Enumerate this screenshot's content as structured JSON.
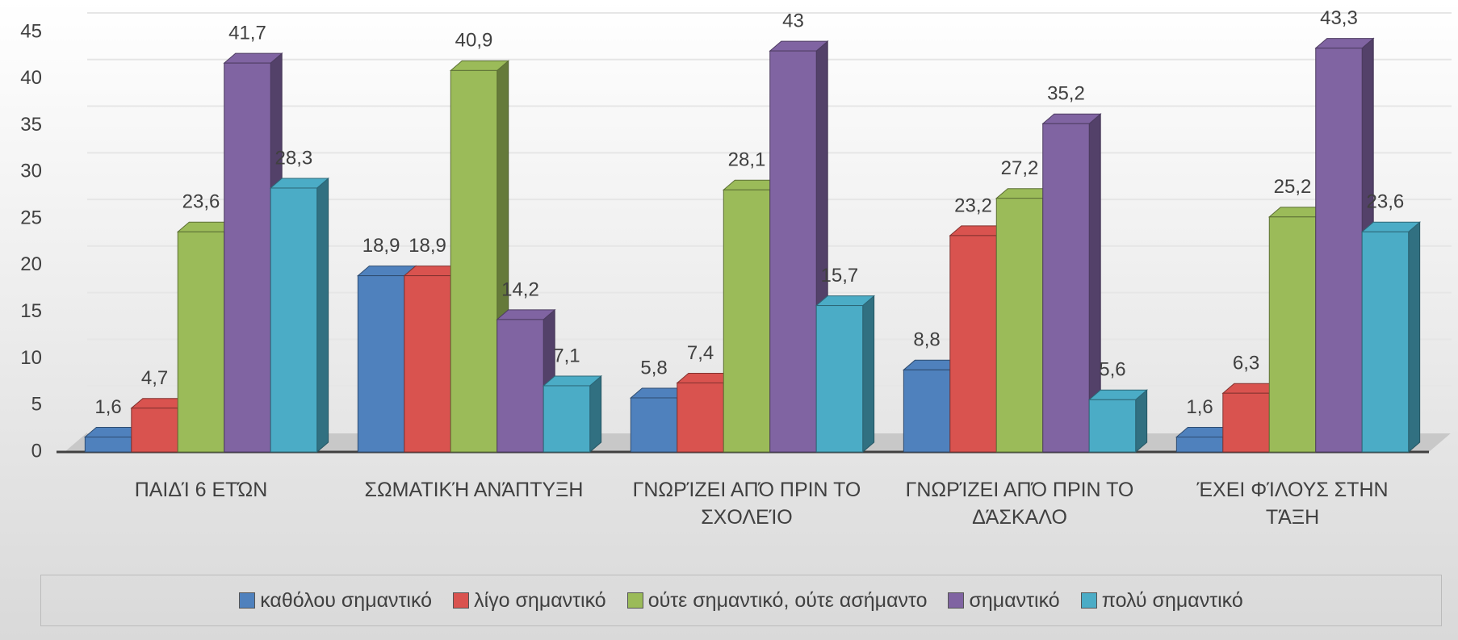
{
  "chart_data": {
    "type": "bar3d",
    "categories": [
      "ΠΑΙΔΊ 6 ΕΤΏΝ",
      "ΣΩΜΑΤΙΚΉ ΑΝΆΠΤΥΞΗ",
      "ΓΝΩΡΊΖΕΙ ΑΠΌ ΠΡΙΝ ΤΟ ΣΧΟΛΕΊΟ",
      "ΓΝΩΡΊΖΕΙ ΑΠΌ ΠΡΙΝ ΤΟ ΔΆΣΚΑΛΟ",
      "ΈΧΕΙ ΦΊΛΟΥΣ ΣΤΗΝ ΤΆΞΗ"
    ],
    "series": [
      {
        "name": "καθόλου σημαντικό",
        "color": "#4f81bd",
        "values": [
          1.6,
          18.9,
          5.8,
          8.8,
          1.6
        ],
        "value_labels": [
          "1,6",
          "18,9",
          "5,8",
          "8,8",
          "1,6"
        ]
      },
      {
        "name": "λίγο σημαντικό",
        "color": "#d9534f",
        "values": [
          4.7,
          18.9,
          7.4,
          23.2,
          6.3
        ],
        "value_labels": [
          "4,7",
          "18,9",
          "7,4",
          "23,2",
          "6,3"
        ]
      },
      {
        "name": "ούτε σημαντικό, ούτε ασήμαντο",
        "color": "#9bbb59",
        "values": [
          23.6,
          40.9,
          28.1,
          27.2,
          25.2
        ],
        "value_labels": [
          "23,6",
          "40,9",
          "28,1",
          "27,2",
          "25,2"
        ]
      },
      {
        "name": "σημαντικό",
        "color": "#8064a2",
        "values": [
          41.7,
          14.2,
          43,
          35.2,
          43.3
        ],
        "value_labels": [
          "41,7",
          "14,2",
          "43",
          "35,2",
          "43,3"
        ]
      },
      {
        "name": "πολύ σημαντικό",
        "color": "#4bacc6",
        "values": [
          28.3,
          7.1,
          15.7,
          5.6,
          23.6
        ],
        "value_labels": [
          "28,3",
          "7,1",
          "15,7",
          "5,6",
          "23,6"
        ]
      }
    ],
    "ylim": [
      0,
      45
    ],
    "yticks": [
      0,
      5,
      10,
      15,
      20,
      25,
      30,
      35,
      40,
      45
    ],
    "grid": true,
    "legend": "bottom"
  }
}
